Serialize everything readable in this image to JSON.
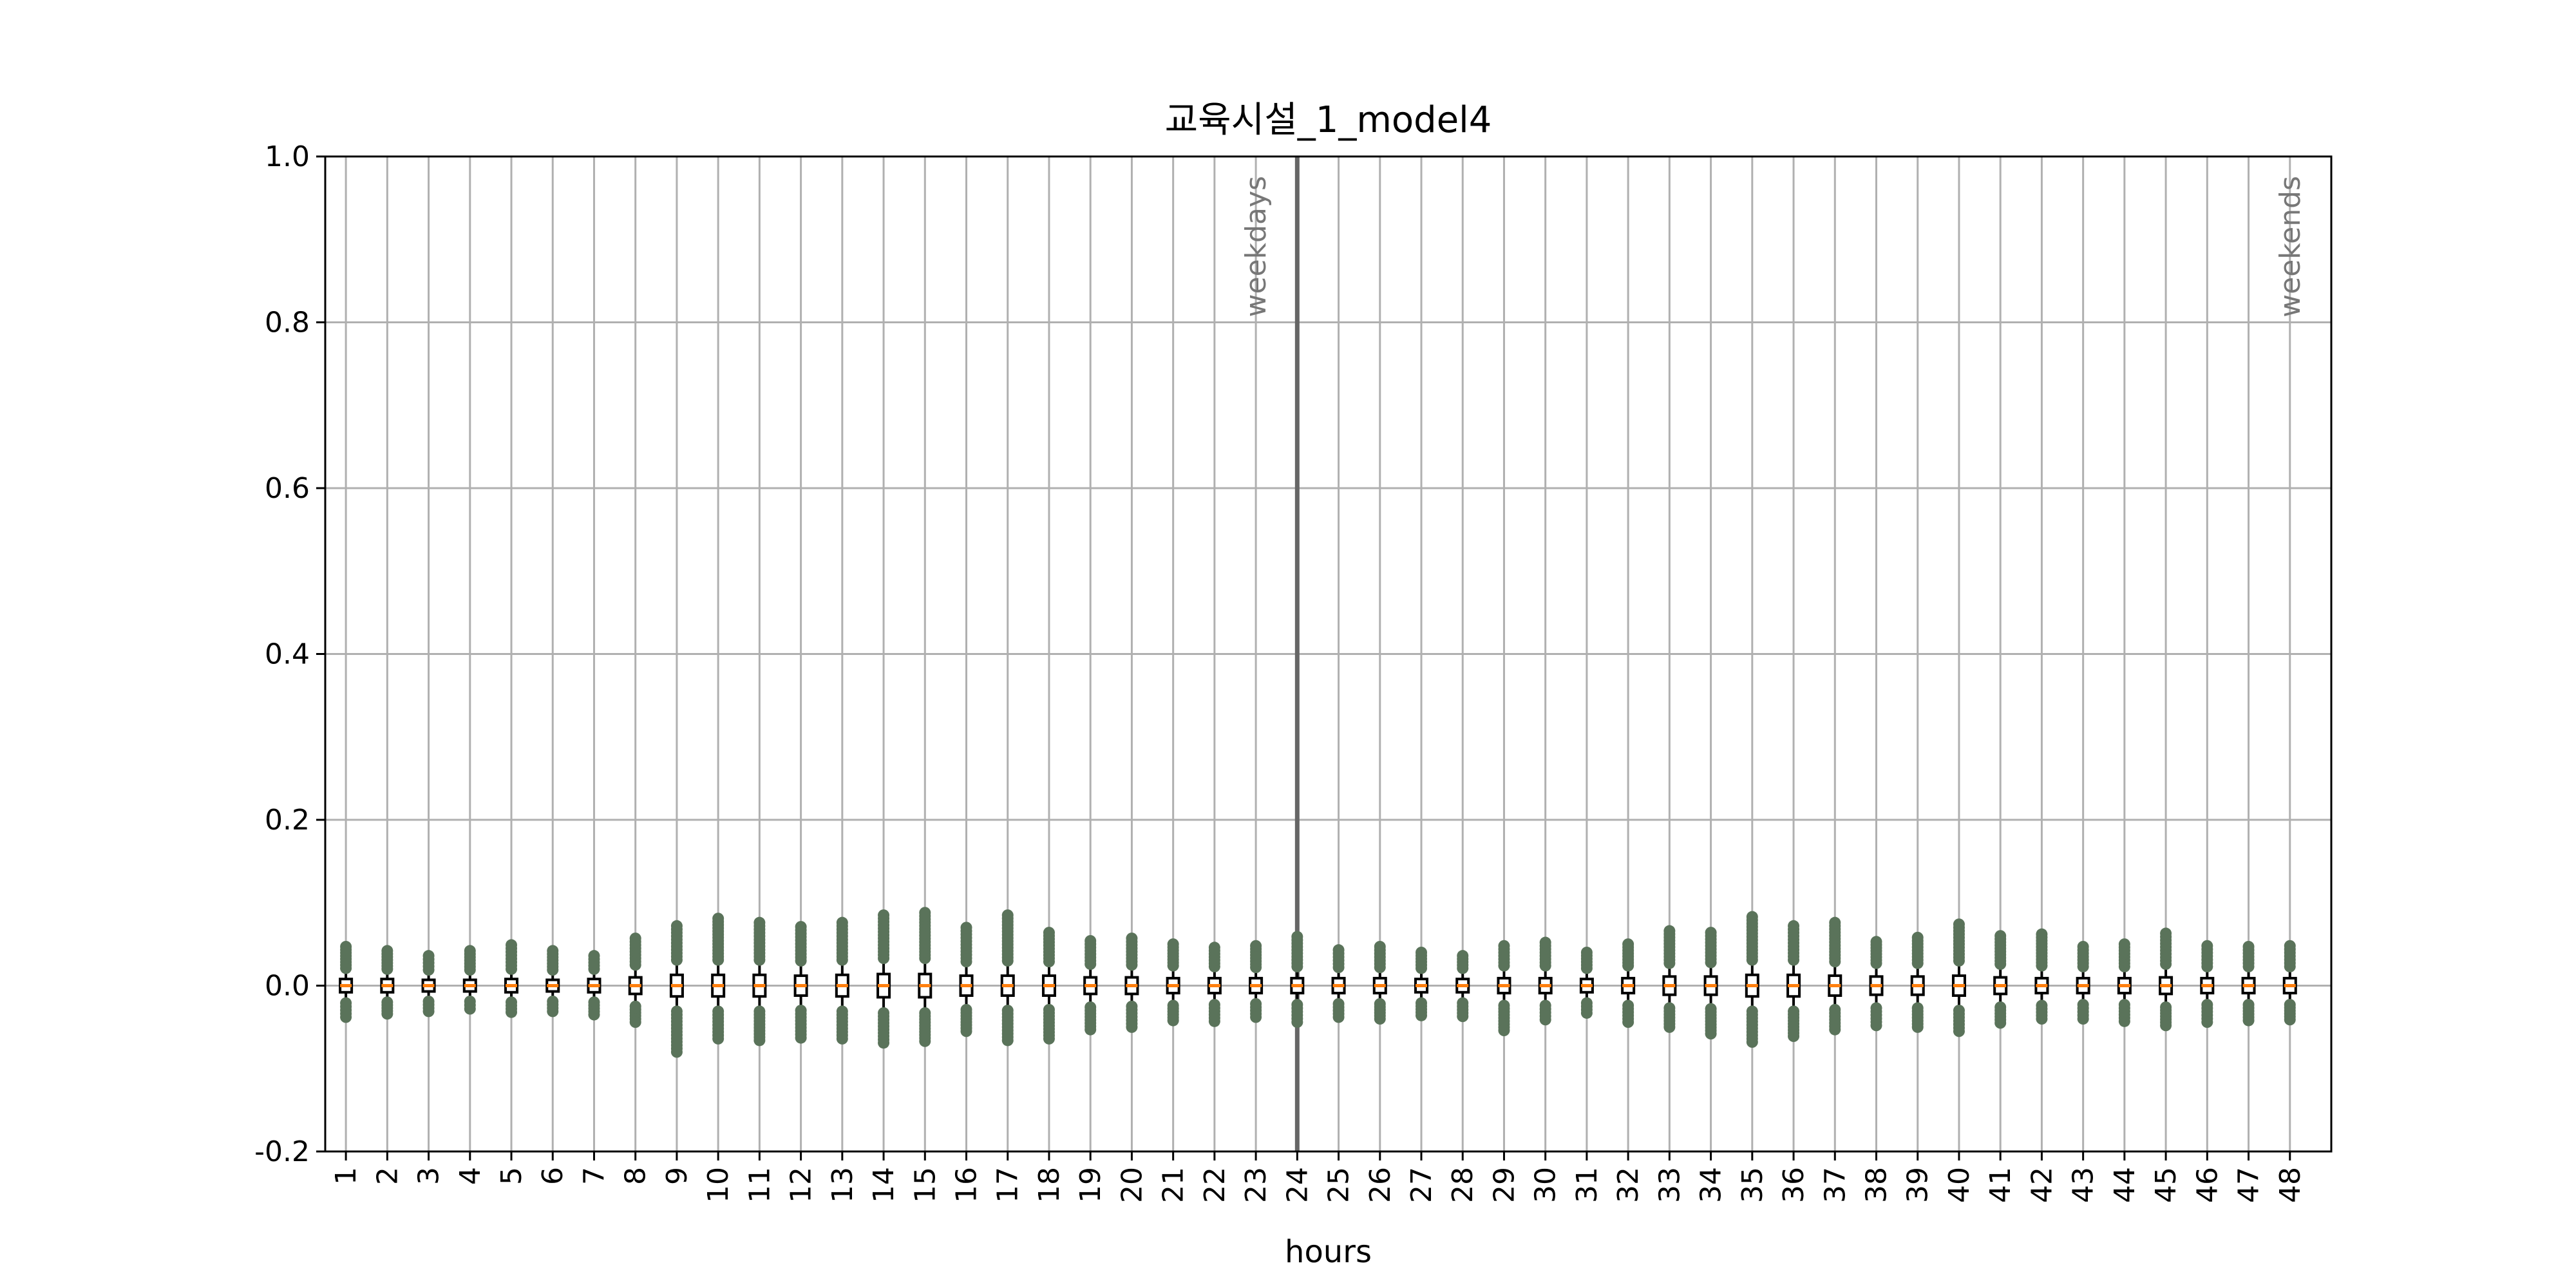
{
  "chart_data": {
    "type": "box",
    "title": "교육시설_1_model4",
    "xlabel": "hours",
    "ylabel": "",
    "ylim": [
      -0.2,
      1.0
    ],
    "yticks": [
      "-0.2",
      "0.0",
      "0.2",
      "0.4",
      "0.6",
      "0.8",
      "1.0"
    ],
    "ytick_values": [
      -0.2,
      0.0,
      0.2,
      0.4,
      0.6,
      0.8,
      1.0
    ],
    "grid": true,
    "divider_at": 24,
    "annotations": [
      {
        "text": "weekdays",
        "at": 23
      },
      {
        "text": "weekends",
        "at": 48
      }
    ],
    "colors": {
      "box": "#000000",
      "median": "#ff7f0e",
      "flier": "#5a735a",
      "grid": "#b0b0b0",
      "divider": "#666666"
    },
    "categories": [
      "1",
      "2",
      "3",
      "4",
      "5",
      "6",
      "7",
      "8",
      "9",
      "10",
      "11",
      "12",
      "13",
      "14",
      "15",
      "16",
      "17",
      "18",
      "19",
      "20",
      "21",
      "22",
      "23",
      "24",
      "25",
      "26",
      "27",
      "28",
      "29",
      "30",
      "31",
      "32",
      "33",
      "34",
      "35",
      "36",
      "37",
      "38",
      "39",
      "40",
      "41",
      "42",
      "43",
      "44",
      "45",
      "46",
      "47",
      "48"
    ],
    "whisker_low": [
      -0.018,
      -0.017,
      -0.016,
      -0.016,
      -0.017,
      -0.016,
      -0.017,
      -0.022,
      -0.028,
      -0.028,
      -0.028,
      -0.027,
      -0.028,
      -0.03,
      -0.03,
      -0.026,
      -0.027,
      -0.026,
      -0.023,
      -0.022,
      -0.021,
      -0.02,
      -0.019,
      -0.02,
      -0.019,
      -0.019,
      -0.018,
      -0.018,
      -0.021,
      -0.021,
      -0.018,
      -0.021,
      -0.024,
      -0.025,
      -0.028,
      -0.028,
      -0.026,
      -0.024,
      -0.024,
      -0.027,
      -0.023,
      -0.021,
      -0.02,
      -0.02,
      -0.023,
      -0.02,
      -0.02,
      -0.02
    ],
    "q1": [
      -0.008,
      -0.008,
      -0.007,
      -0.007,
      -0.008,
      -0.007,
      -0.008,
      -0.01,
      -0.013,
      -0.013,
      -0.013,
      -0.012,
      -0.013,
      -0.014,
      -0.014,
      -0.012,
      -0.012,
      -0.012,
      -0.01,
      -0.01,
      -0.009,
      -0.009,
      -0.009,
      -0.009,
      -0.009,
      -0.009,
      -0.008,
      -0.008,
      -0.009,
      -0.009,
      -0.008,
      -0.009,
      -0.011,
      -0.011,
      -0.013,
      -0.013,
      -0.012,
      -0.011,
      -0.011,
      -0.012,
      -0.01,
      -0.009,
      -0.009,
      -0.009,
      -0.01,
      -0.009,
      -0.009,
      -0.009
    ],
    "median": [
      0.0,
      0.0,
      0.0,
      0.0,
      0.0,
      0.0,
      0.0,
      0.0,
      0.0,
      0.0,
      0.0,
      0.0,
      0.0,
      0.0,
      0.0,
      0.0,
      0.0,
      0.0,
      0.0,
      0.0,
      0.0,
      0.0,
      0.0,
      0.0,
      0.0,
      0.0,
      0.0,
      0.0,
      0.0,
      0.0,
      0.0,
      0.0,
      0.0,
      0.0,
      0.0,
      0.0,
      0.0,
      0.0,
      0.0,
      0.0,
      0.0,
      0.0,
      0.0,
      0.0,
      0.0,
      0.0,
      0.0,
      0.0
    ],
    "q3": [
      0.008,
      0.008,
      0.007,
      0.007,
      0.008,
      0.007,
      0.008,
      0.01,
      0.013,
      0.013,
      0.013,
      0.012,
      0.013,
      0.014,
      0.014,
      0.012,
      0.012,
      0.012,
      0.01,
      0.01,
      0.009,
      0.009,
      0.009,
      0.009,
      0.009,
      0.009,
      0.008,
      0.008,
      0.009,
      0.009,
      0.008,
      0.009,
      0.011,
      0.011,
      0.013,
      0.013,
      0.012,
      0.011,
      0.011,
      0.012,
      0.01,
      0.009,
      0.009,
      0.009,
      0.01,
      0.009,
      0.009,
      0.009
    ],
    "whisker_high": [
      0.018,
      0.017,
      0.016,
      0.016,
      0.017,
      0.016,
      0.017,
      0.022,
      0.028,
      0.028,
      0.028,
      0.027,
      0.028,
      0.03,
      0.03,
      0.026,
      0.027,
      0.026,
      0.023,
      0.022,
      0.021,
      0.02,
      0.019,
      0.02,
      0.019,
      0.019,
      0.018,
      0.018,
      0.021,
      0.021,
      0.018,
      0.021,
      0.024,
      0.025,
      0.028,
      0.028,
      0.026,
      0.024,
      0.024,
      0.027,
      0.023,
      0.021,
      0.02,
      0.02,
      0.023,
      0.02,
      0.02,
      0.02
    ],
    "flier_high_max": [
      0.047,
      0.042,
      0.036,
      0.042,
      0.049,
      0.042,
      0.036,
      0.057,
      0.072,
      0.081,
      0.076,
      0.071,
      0.076,
      0.085,
      0.088,
      0.07,
      0.085,
      0.064,
      0.054,
      0.057,
      0.05,
      0.046,
      0.048,
      0.059,
      0.043,
      0.047,
      0.04,
      0.036,
      0.048,
      0.052,
      0.04,
      0.05,
      0.066,
      0.064,
      0.083,
      0.072,
      0.076,
      0.053,
      0.058,
      0.074,
      0.06,
      0.062,
      0.047,
      0.05,
      0.063,
      0.048,
      0.047,
      0.048
    ],
    "flier_low_min": [
      -0.038,
      -0.034,
      -0.031,
      -0.028,
      -0.032,
      -0.031,
      -0.035,
      -0.044,
      -0.08,
      -0.064,
      -0.066,
      -0.063,
      -0.064,
      -0.069,
      -0.067,
      -0.055,
      -0.066,
      -0.064,
      -0.053,
      -0.05,
      -0.042,
      -0.043,
      -0.038,
      -0.044,
      -0.038,
      -0.04,
      -0.036,
      -0.037,
      -0.054,
      -0.041,
      -0.033,
      -0.044,
      -0.05,
      -0.058,
      -0.068,
      -0.061,
      -0.053,
      -0.048,
      -0.05,
      -0.055,
      -0.045,
      -0.04,
      -0.04,
      -0.043,
      -0.048,
      -0.044,
      -0.042,
      -0.041
    ]
  }
}
